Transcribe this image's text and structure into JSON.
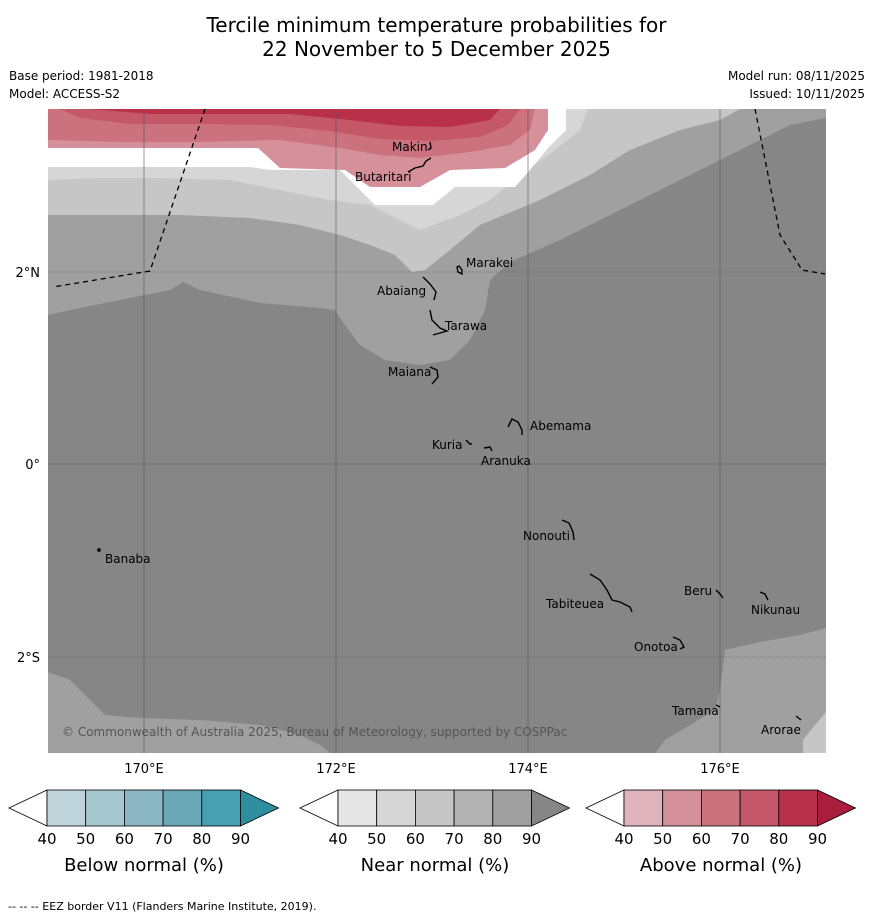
{
  "title_line1": "Tercile minimum temperature probabilities for",
  "title_line2": "22 November to 5 December 2025",
  "base_period": "Base period: 1981-2018",
  "model": "Model: ACCESS-S2",
  "model_run": "Model run: 08/11/2025",
  "issued": "Issued: 10/11/2025",
  "copyright": "© Commonwealth of Australia 2025, Bureau of Meteorology, supported by COSPPac",
  "footnote": "--  --  -- EEZ border V11 (Flanders Marine Institute, 2019).",
  "axes": {
    "lat_labels": [
      "2°N",
      "0°",
      "2°S"
    ],
    "lon_labels": [
      "170°E",
      "172°E",
      "174°E",
      "176°E"
    ]
  },
  "places": {
    "makin": "Makin",
    "butaritari": "Butaritari",
    "marakei": "Marakei",
    "abaiang": "Abaiang",
    "tarawa": "Tarawa",
    "maiana": "Maiana",
    "abemama": "Abemama",
    "kuria": "Kuria",
    "aranuka": "Aranuka",
    "nonouti": "Nonouti",
    "banaba": "Banaba",
    "beru": "Beru",
    "nikunau": "Nikunau",
    "tabiteuea": "Tabiteuea",
    "onotoa": "Onotoa",
    "tamana": "Tamana",
    "arorae": "Arorae"
  },
  "legends": {
    "below": {
      "title": "Below normal (%)",
      "ticks": [
        "40",
        "50",
        "60",
        "70",
        "80",
        "90"
      ],
      "colors": [
        "#ffffff",
        "#bfd3da",
        "#a6c7cf",
        "#8bb8c4",
        "#6aa8b8",
        "#46a0b2",
        "#2f8da0"
      ]
    },
    "near": {
      "title": "Near normal (%)",
      "ticks": [
        "40",
        "50",
        "60",
        "70",
        "80",
        "90"
      ],
      "colors": [
        "#ffffff",
        "#e6e6e6",
        "#d6d6d6",
        "#c6c6c6",
        "#b3b3b3",
        "#a0a0a0",
        "#868686"
      ]
    },
    "above": {
      "title": "Above normal (%)",
      "ticks": [
        "40",
        "50",
        "60",
        "70",
        "80",
        "90"
      ],
      "colors": [
        "#ffffff",
        "#e0b4bc",
        "#d6909b",
        "#cc727e",
        "#c45868",
        "#b9304a",
        "#a81e3c"
      ]
    }
  },
  "map_colors": {
    "near_90": "#868686",
    "near_80": "#a0a0a0",
    "near_70": "#c6c6c6",
    "near_60": "#d6d6d6",
    "above_50": "#d6909b",
    "above_60": "#cc727e",
    "above_70": "#c45868",
    "above_80": "#b9304a"
  }
}
